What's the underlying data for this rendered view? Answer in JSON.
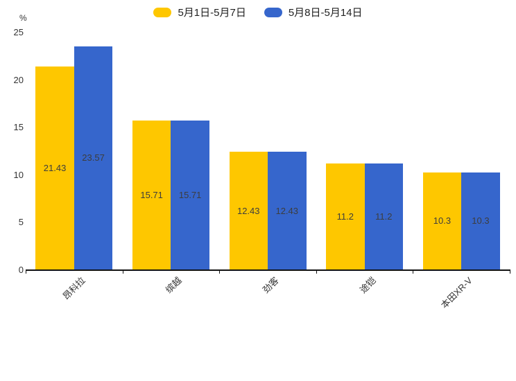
{
  "chart_data": {
    "type": "bar",
    "title": "",
    "categories": [
      "昂科拉",
      "缤越",
      "劲客",
      "途铠",
      "本田XR-V"
    ],
    "series": [
      {
        "name": "5月1日-5月7日",
        "color": "#FEC700",
        "values": [
          21.43,
          15.71,
          12.43,
          11.2,
          10.3
        ]
      },
      {
        "name": "5月8日-5月14日",
        "color": "#3666CC",
        "values": [
          23.57,
          15.71,
          12.43,
          11.2,
          10.3
        ]
      }
    ],
    "xlabel": "",
    "ylabel": "%",
    "ylim": [
      0,
      25
    ],
    "yticks": [
      0,
      5,
      10,
      15,
      20,
      25
    ],
    "grid": false,
    "legend_position": "top",
    "value_labels": "inside-center",
    "label_color": "#3d3d3d",
    "axis_color": "#111111"
  }
}
